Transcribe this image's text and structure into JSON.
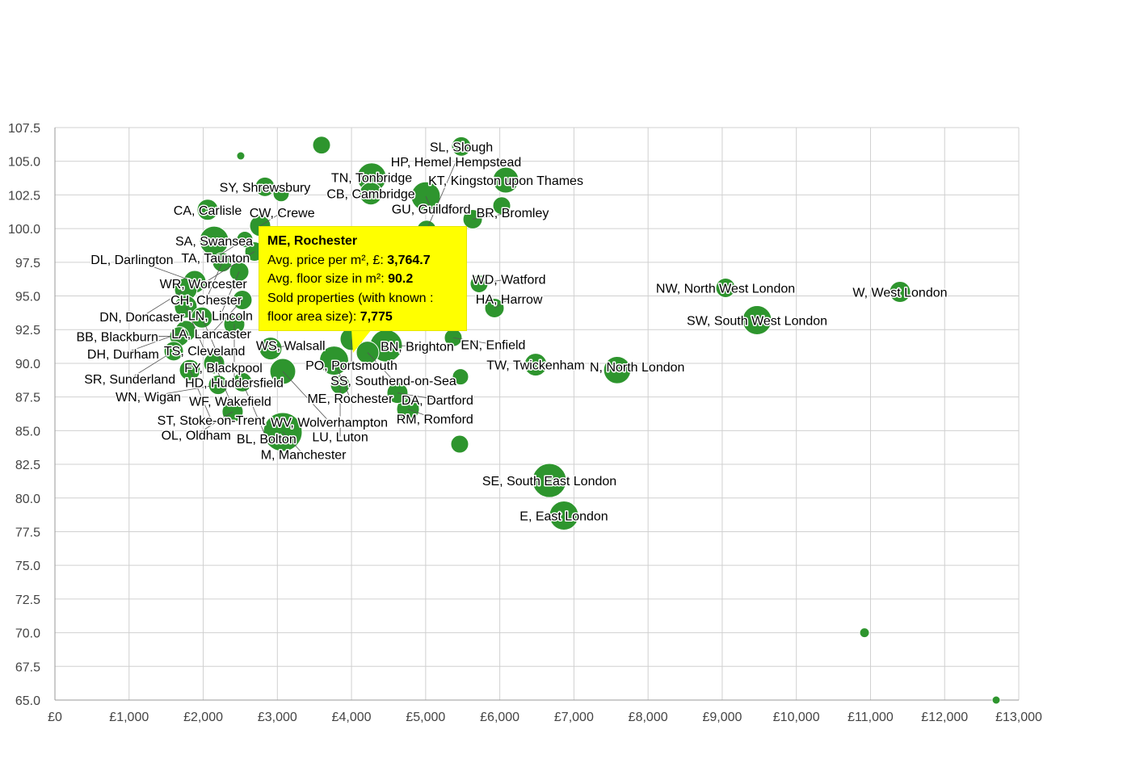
{
  "chart_data": {
    "type": "bubble",
    "title": "",
    "xlabel": "Avg. price per m², £",
    "ylabel": "Avg. floor size in m²",
    "xlim": [
      0,
      13000
    ],
    "ylim": [
      65,
      107.5
    ],
    "x_ticks": [
      "£0",
      "£1,000",
      "£2,000",
      "£3,000",
      "£4,000",
      "£5,000",
      "£6,000",
      "£7,000",
      "£8,000",
      "£9,000",
      "£10,000",
      "£11,000",
      "£12,000",
      "£13,000"
    ],
    "y_ticks": [
      "65.0",
      "67.5",
      "70.0",
      "72.5",
      "75.0",
      "77.5",
      "80.0",
      "82.5",
      "85.0",
      "87.5",
      "90.0",
      "92.5",
      "95.0",
      "97.5",
      "100.0",
      "102.5",
      "105.0",
      "107.5"
    ],
    "grid": true,
    "bubble_color": "#2e952e",
    "points": [
      {
        "label": "SL, Slough",
        "x": 5481,
        "y": 106.1,
        "size": 3450
      },
      {
        "label": "",
        "x": 3596,
        "y": 106.2,
        "size": 2900
      },
      {
        "label": "",
        "x": 2506,
        "y": 105.4,
        "size": 600
      },
      {
        "label": "TN, Tonbridge",
        "x": 4272,
        "y": 103.8,
        "size": 7775
      },
      {
        "label": "KT, Kingston upon Thames",
        "x": 6081,
        "y": 103.6,
        "size": 6100
      },
      {
        "label": "CB, Cambridge",
        "x": 4261,
        "y": 102.6,
        "size": 4700
      },
      {
        "label": "GU, Guildford",
        "x": 5002,
        "y": 102.4,
        "size": 7775
      },
      {
        "label": "SY, Shrewsbury",
        "x": 2833,
        "y": 103.1,
        "size": 3450
      },
      {
        "label": "",
        "x": 3051,
        "y": 102.6,
        "size": 2400
      },
      {
        "label": "",
        "x": 6026,
        "y": 101.7,
        "size": 2900
      },
      {
        "label": "CA, Carlisle",
        "x": 2060,
        "y": 101.4,
        "size": 4060
      },
      {
        "label": "BR, Bromley",
        "x": 5634,
        "y": 100.7,
        "size": 3450
      },
      {
        "label": "CW, Crewe",
        "x": 2768,
        "y": 100.2,
        "size": 4060
      },
      {
        "label": "HP, Hemel Hempstead",
        "x": 5013,
        "y": 99.9,
        "size": 3450
      },
      {
        "label": "SA, Swansea",
        "x": 2147,
        "y": 99.1,
        "size": 7775
      },
      {
        "label": "TA, Taunton",
        "x": 2561,
        "y": 99.2,
        "size": 2400
      },
      {
        "label": "WR, Worcester",
        "x": 2692,
        "y": 98.3,
        "size": 3450
      },
      {
        "label": "CH, Chester",
        "x": 2256,
        "y": 97.5,
        "size": 3450
      },
      {
        "label": "LN, Lincoln",
        "x": 2485,
        "y": 96.8,
        "size": 3450
      },
      {
        "label": "DL, Darlington",
        "x": 1885,
        "y": 96.05,
        "size": 4700
      },
      {
        "label": "DN, Doncaster",
        "x": 1765,
        "y": 95.5,
        "size": 4700
      },
      {
        "label": "LA, Lancaster",
        "x": 2528,
        "y": 94.7,
        "size": 3450
      },
      {
        "label": "TS, Cleveland",
        "x": 1765,
        "y": 94.2,
        "size": 4700
      },
      {
        "label": "FY, Blackpool",
        "x": 1983,
        "y": 93.4,
        "size": 4060
      },
      {
        "label": "HD, Huddersfield",
        "x": 2419,
        "y": 92.9,
        "size": 4060
      },
      {
        "label": "DH, Durham",
        "x": 1765,
        "y": 92.4,
        "size": 4060
      },
      {
        "label": "BB, Blackburn",
        "x": 1678,
        "y": 92.0,
        "size": 3450
      },
      {
        "label": "SR, Sunderland",
        "x": 1602,
        "y": 90.9,
        "size": 3450
      },
      {
        "label": "WS, Walsall",
        "x": 2909,
        "y": 91.1,
        "size": 4700
      },
      {
        "label": "PO, Portsmouth",
        "x": 3999,
        "y": 91.8,
        "size": 4700
      },
      {
        "label": "SS, Southend-on-Sea",
        "x": 4217,
        "y": 90.8,
        "size": 4700
      },
      {
        "label": "BN, Brighton",
        "x": 4468,
        "y": 91.3,
        "size": 9600
      },
      {
        "label": "ME, Rochester",
        "x": 3764.7,
        "y": 90.2,
        "size": 7775
      },
      {
        "label": "WF, Wakefield",
        "x": 2147,
        "y": 90.0,
        "size": 4060
      },
      {
        "label": "ST, Stoke-on-Trent",
        "x": 1820,
        "y": 89.5,
        "size": 4060
      },
      {
        "label": "WV, Wolverhampton",
        "x": 3073,
        "y": 89.4,
        "size": 6100
      },
      {
        "label": "WN, Wigan",
        "x": 2201,
        "y": 88.4,
        "size": 3450
      },
      {
        "label": "BL, Bolton",
        "x": 2528,
        "y": 88.6,
        "size": 3450
      },
      {
        "label": "LU, Luton",
        "x": 3847,
        "y": 88.4,
        "size": 3450
      },
      {
        "label": "DA, Dartford",
        "x": 4620,
        "y": 87.8,
        "size": 4060
      },
      {
        "label": "RM, Romford",
        "x": 4762,
        "y": 86.6,
        "size": 4700
      },
      {
        "label": "OL, Oldham",
        "x": 2397,
        "y": 86.4,
        "size": 4060
      },
      {
        "label": "M, Manchester",
        "x": 3073,
        "y": 84.9,
        "size": 13800
      },
      {
        "label": "EN, Enfield",
        "x": 5372,
        "y": 91.9,
        "size": 2900
      },
      {
        "label": "HA, Harrow",
        "x": 5928,
        "y": 94.1,
        "size": 3450
      },
      {
        "label": "WD, Watford",
        "x": 5721,
        "y": 95.9,
        "size": 2900
      },
      {
        "label": "TW, Twickenham",
        "x": 6484,
        "y": 89.9,
        "size": 4700
      },
      {
        "label": "N, North London",
        "x": 7584,
        "y": 89.5,
        "size": 6800
      },
      {
        "label": "NW, North West London",
        "x": 9045,
        "y": 95.6,
        "size": 3450
      },
      {
        "label": "W, West London",
        "x": 11398,
        "y": 95.3,
        "size": 4060
      },
      {
        "label": "SW, South West London",
        "x": 9470,
        "y": 93.2,
        "size": 7775
      },
      {
        "label": "SE, South East London",
        "x": 6669,
        "y": 81.3,
        "size": 10600
      },
      {
        "label": "E, East London",
        "x": 6865,
        "y": 78.7,
        "size": 7775
      },
      {
        "label": "",
        "x": 5470,
        "y": 89.0,
        "size": 2400
      },
      {
        "label": "",
        "x": 5459,
        "y": 84.0,
        "size": 2900
      },
      {
        "label": "",
        "x": 10919,
        "y": 70.0,
        "size": 860
      },
      {
        "label": "",
        "x": 12695,
        "y": 65.0,
        "size": 600
      }
    ]
  },
  "tooltip": {
    "title": "ME, Rochester",
    "price_label": "Avg. price per m², £:",
    "price_value": "3,764.7",
    "floor_label": "Avg. floor size in m²:",
    "floor_value": "90.2",
    "sold_label_1": "Sold properties (with known :",
    "sold_label_2": "floor area size):",
    "sold_value": "7,775"
  }
}
